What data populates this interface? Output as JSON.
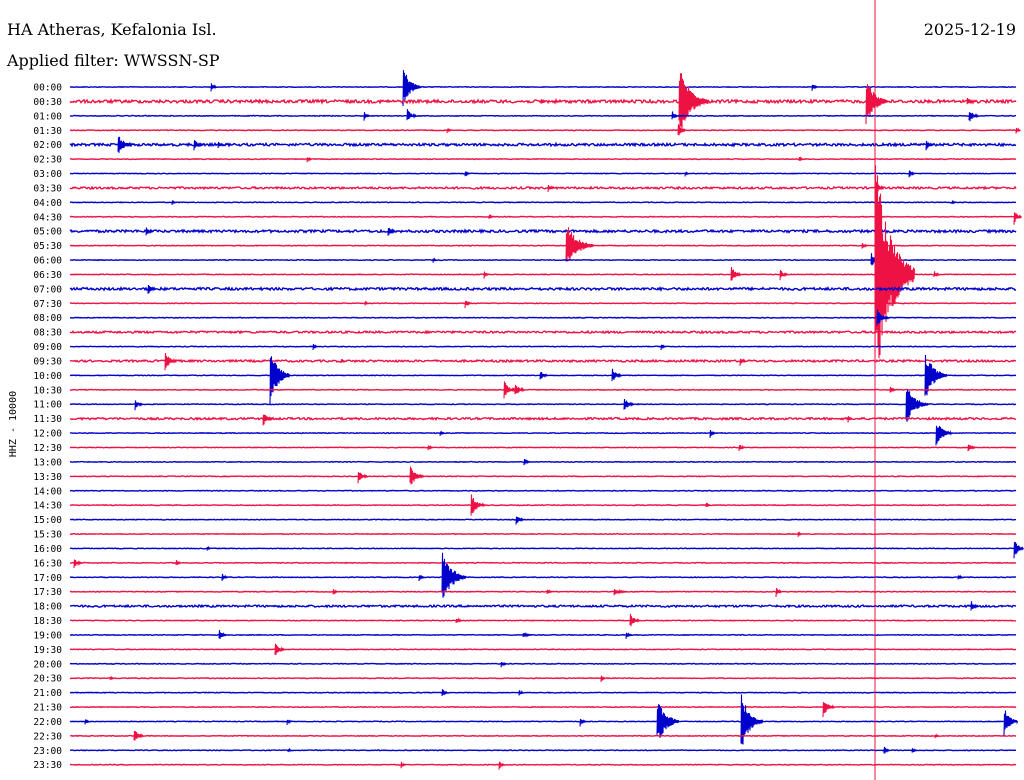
{
  "header": {
    "station": "HA Atheras, Kefalonia Isl.",
    "date": "2025-12-19",
    "filter": "Applied filter: WWSSN-SP"
  },
  "chart_data": {
    "type": "line",
    "title": "HA Atheras, Kefalonia Isl.",
    "ylabel": "HHZ - 10000",
    "colors": {
      "even": "#0000cc",
      "odd": "#ee1144",
      "marker": "#ee1144"
    },
    "marker_line": true,
    "rows": [
      {
        "label": "00:00",
        "events": [
          [
            211,
            6,
            6
          ],
          [
            403,
            22,
            18
          ],
          [
            812,
            4,
            6
          ]
        ]
      },
      {
        "label": "00:30",
        "events": [
          [
            541,
            4,
            5
          ],
          [
            679,
            38,
            30
          ],
          [
            866,
            26,
            22
          ],
          [
            967,
            5,
            6
          ]
        ],
        "noise": 3
      },
      {
        "label": "01:00",
        "events": [
          [
            364,
            5,
            6
          ],
          [
            407,
            8,
            10
          ],
          [
            672,
            6,
            6
          ],
          [
            969,
            8,
            10
          ]
        ]
      },
      {
        "label": "01:30",
        "events": [
          [
            447,
            3,
            5
          ],
          [
            678,
            8,
            8
          ],
          [
            1016,
            4,
            5
          ]
        ]
      },
      {
        "label": "02:00",
        "events": [
          [
            118,
            12,
            14
          ],
          [
            194,
            6,
            10
          ],
          [
            218,
            4,
            6
          ],
          [
            926,
            6,
            8
          ]
        ],
        "noise": 2.5
      },
      {
        "label": "02:30",
        "events": [
          [
            307,
            4,
            5
          ],
          [
            799,
            3,
            5
          ]
        ]
      },
      {
        "label": "03:00",
        "events": [
          [
            465,
            4,
            5
          ],
          [
            685,
            3,
            4
          ],
          [
            909,
            5,
            6
          ]
        ]
      },
      {
        "label": "03:30",
        "events": [
          [
            548,
            5,
            6
          ],
          [
            876,
            8,
            8
          ]
        ],
        "noise": 2
      },
      {
        "label": "04:00",
        "events": [
          [
            172,
            3,
            4
          ],
          [
            952,
            3,
            4
          ]
        ]
      },
      {
        "label": "04:30",
        "events": [
          [
            489,
            3,
            5
          ],
          [
            1014,
            8,
            8
          ]
        ]
      },
      {
        "label": "05:00",
        "events": [
          [
            146,
            5,
            8
          ],
          [
            388,
            6,
            8
          ]
        ],
        "noise": 2.5
      },
      {
        "label": "05:30",
        "events": [
          [
            566,
            24,
            28
          ],
          [
            862,
            4,
            6
          ]
        ]
      },
      {
        "label": "06:00",
        "events": [
          [
            433,
            3,
            4
          ],
          [
            871,
            8,
            10
          ]
        ]
      },
      {
        "label": "06:30",
        "events": [
          [
            484,
            4,
            5
          ],
          [
            731,
            10,
            10
          ],
          [
            780,
            6,
            8
          ],
          [
            875,
            120,
            40
          ],
          [
            934,
            4,
            6
          ]
        ]
      },
      {
        "label": "07:00",
        "events": [
          [
            148,
            6,
            8
          ]
        ],
        "noise": 2.5
      },
      {
        "label": "07:30",
        "events": [
          [
            365,
            3,
            4
          ],
          [
            465,
            5,
            6
          ]
        ]
      },
      {
        "label": "08:00",
        "events": [
          [
            877,
            10,
            12
          ]
        ]
      },
      {
        "label": "08:30",
        "events": [],
        "noise": 2
      },
      {
        "label": "09:00",
        "events": [
          [
            313,
            4,
            5
          ],
          [
            661,
            4,
            5
          ]
        ]
      },
      {
        "label": "09:30",
        "events": [
          [
            165,
            10,
            12
          ],
          [
            341,
            3,
            4
          ],
          [
            740,
            5,
            6
          ]
        ],
        "noise": 2
      },
      {
        "label": "10:00",
        "events": [
          [
            270,
            30,
            20
          ],
          [
            540,
            6,
            8
          ],
          [
            612,
            8,
            10
          ],
          [
            925,
            26,
            22
          ]
        ]
      },
      {
        "label": "10:30",
        "events": [
          [
            504,
            10,
            12
          ],
          [
            515,
            8,
            10
          ],
          [
            890,
            4,
            6
          ]
        ]
      },
      {
        "label": "11:00",
        "events": [
          [
            135,
            6,
            8
          ],
          [
            624,
            8,
            10
          ],
          [
            906,
            22,
            22
          ]
        ]
      },
      {
        "label": "11:30",
        "events": [
          [
            263,
            8,
            10
          ],
          [
            848,
            4,
            5
          ]
        ],
        "noise": 2
      },
      {
        "label": "12:00",
        "events": [
          [
            440,
            3,
            5
          ],
          [
            710,
            5,
            6
          ],
          [
            936,
            14,
            16
          ]
        ]
      },
      {
        "label": "12:30",
        "events": [
          [
            428,
            4,
            5
          ],
          [
            739,
            5,
            6
          ],
          [
            968,
            6,
            8
          ]
        ]
      },
      {
        "label": "13:00",
        "events": [
          [
            524,
            5,
            6
          ]
        ]
      },
      {
        "label": "13:30",
        "events": [
          [
            358,
            8,
            10
          ],
          [
            410,
            12,
            14
          ]
        ]
      },
      {
        "label": "14:00",
        "events": []
      },
      {
        "label": "14:30",
        "events": [
          [
            471,
            12,
            14
          ],
          [
            706,
            3,
            5
          ]
        ]
      },
      {
        "label": "15:00",
        "events": [
          [
            516,
            6,
            8
          ]
        ]
      },
      {
        "label": "15:30",
        "events": [
          [
            798,
            3,
            4
          ]
        ]
      },
      {
        "label": "16:00",
        "events": [
          [
            207,
            3,
            4
          ],
          [
            1014,
            12,
            10
          ]
        ]
      },
      {
        "label": "16:30",
        "events": [
          [
            74,
            6,
            8
          ],
          [
            176,
            4,
            5
          ]
        ]
      },
      {
        "label": "17:00",
        "events": [
          [
            222,
            5,
            6
          ],
          [
            419,
            4,
            6
          ],
          [
            442,
            30,
            24
          ],
          [
            958,
            4,
            5
          ]
        ]
      },
      {
        "label": "17:30",
        "events": [
          [
            333,
            4,
            5
          ],
          [
            547,
            4,
            5
          ],
          [
            614,
            4,
            14
          ],
          [
            776,
            6,
            6
          ]
        ]
      },
      {
        "label": "18:00",
        "events": [
          [
            971,
            6,
            8
          ]
        ],
        "noise": 2
      },
      {
        "label": "18:30",
        "events": [
          [
            456,
            4,
            6
          ],
          [
            630,
            8,
            10
          ]
        ]
      },
      {
        "label": "19:00",
        "events": [
          [
            219,
            6,
            8
          ],
          [
            523,
            3,
            10
          ],
          [
            626,
            4,
            6
          ]
        ]
      },
      {
        "label": "19:30",
        "events": [
          [
            275,
            8,
            10
          ]
        ]
      },
      {
        "label": "20:00",
        "events": [
          [
            501,
            4,
            6
          ]
        ]
      },
      {
        "label": "20:30",
        "events": [
          [
            110,
            3,
            4
          ],
          [
            601,
            4,
            5
          ]
        ]
      },
      {
        "label": "21:00",
        "events": [
          [
            442,
            5,
            6
          ],
          [
            519,
            4,
            5
          ]
        ]
      },
      {
        "label": "21:30",
        "events": [
          [
            823,
            10,
            12
          ]
        ]
      },
      {
        "label": "22:00",
        "events": [
          [
            85,
            4,
            5
          ],
          [
            287,
            4,
            5
          ],
          [
            580,
            5,
            6
          ],
          [
            657,
            26,
            22
          ],
          [
            741,
            30,
            22
          ],
          [
            1004,
            16,
            14
          ]
        ]
      },
      {
        "label": "22:30",
        "events": [
          [
            134,
            8,
            10
          ],
          [
            935,
            3,
            4
          ]
        ]
      },
      {
        "label": "23:00",
        "events": [
          [
            288,
            3,
            4
          ],
          [
            884,
            5,
            6
          ],
          [
            912,
            4,
            5
          ]
        ]
      },
      {
        "label": "23:30",
        "events": [
          [
            401,
            4,
            5
          ],
          [
            499,
            5,
            6
          ]
        ]
      }
    ]
  }
}
